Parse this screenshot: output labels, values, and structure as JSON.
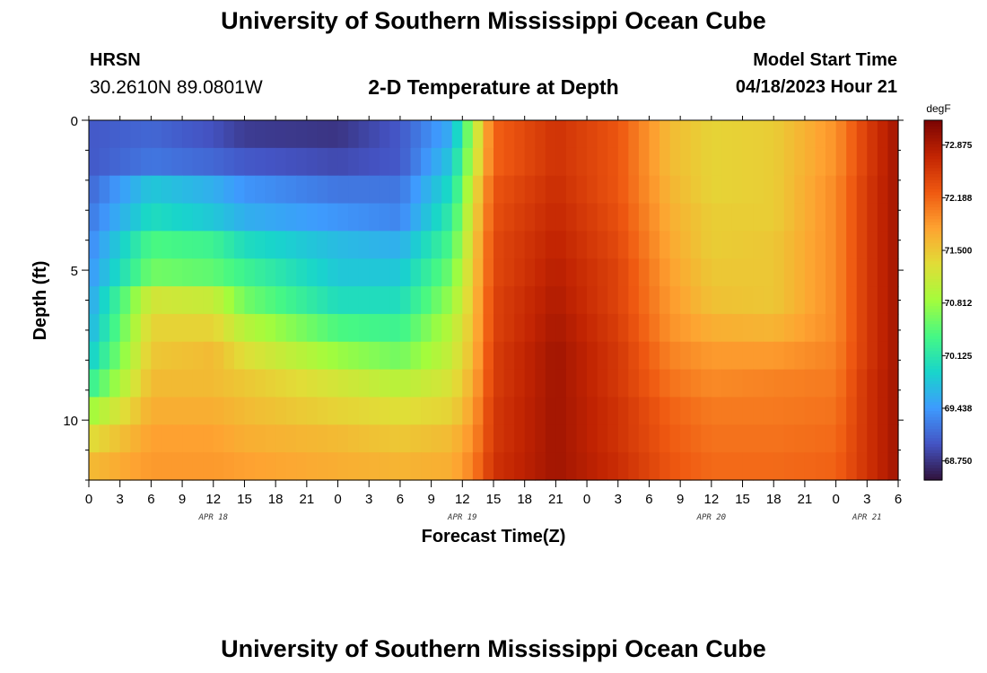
{
  "header": {
    "title": "University of Southern Mississippi Ocean Cube",
    "station_code": "HRSN",
    "station_coords": "30.2610N  89.0801W",
    "subtitle": "2-D Temperature at Depth",
    "model_start_label": "Model Start Time",
    "model_start_value": "04/18/2023 Hour 21"
  },
  "footer": {
    "title": "University of Southern Mississippi Ocean Cube"
  },
  "chart_data": {
    "type": "heatmap",
    "title": "2-D Temperature at Depth",
    "xlabel": "Forecast Time(Z)",
    "ylabel": "Depth (ft)",
    "x_tick_labels": [
      "0",
      "3",
      "6",
      "9",
      "12",
      "15",
      "18",
      "21",
      "0",
      "3",
      "6",
      "9",
      "12",
      "15",
      "18",
      "21",
      "0",
      "3",
      "6",
      "9",
      "12",
      "15",
      "18",
      "21",
      "0",
      "3",
      "6"
    ],
    "x_range_hours": [
      0,
      78
    ],
    "x_tick_step_hours": 3,
    "date_labels": [
      {
        "label": "APR 18",
        "hour": 12
      },
      {
        "label": "APR 19",
        "hour": 36
      },
      {
        "label": "APR 20",
        "hour": 60
      },
      {
        "label": "APR 21",
        "hour": 75
      }
    ],
    "y_range": [
      0,
      12
    ],
    "y_ticks": [
      0,
      5,
      10
    ],
    "y_tick_labels": [
      "0",
      "5",
      "10"
    ],
    "colorbar": {
      "unit": "degF",
      "range": [
        68.5,
        73.2
      ],
      "tick_labels": [
        "72.875",
        "72.188",
        "71.500",
        "70.812",
        "70.125",
        "69.438",
        "68.750"
      ],
      "tick_values": [
        72.875,
        72.188,
        71.5,
        70.812,
        70.125,
        69.438,
        68.75
      ],
      "colormap": [
        "#30123b",
        "#4454c4",
        "#3e9bfe",
        "#18d5cb",
        "#46f884",
        "#a4fc3c",
        "#e1dd37",
        "#fea331",
        "#ef5911",
        "#c22402",
        "#7a0403"
      ]
    },
    "time_hours": [
      0,
      6,
      12,
      15,
      24,
      30,
      35,
      37,
      39,
      45,
      51,
      56,
      60,
      66,
      72,
      75,
      78
    ],
    "depth_rows_ft": [
      0,
      1,
      2,
      3,
      4,
      5,
      6,
      7,
      8,
      9,
      10,
      11,
      12
    ],
    "temperature_degF": [
      [
        69.0,
        69.1,
        68.95,
        68.8,
        68.75,
        69.0,
        69.6,
        70.9,
        72.2,
        72.6,
        72.3,
        71.6,
        71.4,
        71.45,
        71.9,
        72.5,
        72.95
      ],
      [
        69.0,
        69.2,
        69.1,
        69.0,
        68.9,
        69.0,
        69.8,
        71.0,
        72.2,
        72.6,
        72.3,
        71.6,
        71.4,
        71.45,
        71.9,
        72.5,
        72.95
      ],
      [
        69.1,
        69.8,
        69.6,
        69.4,
        69.2,
        69.2,
        70.0,
        71.2,
        72.3,
        72.65,
        72.3,
        71.65,
        71.4,
        71.45,
        71.95,
        72.55,
        72.95
      ],
      [
        69.2,
        70.0,
        69.8,
        69.6,
        69.4,
        69.3,
        70.2,
        71.3,
        72.35,
        72.7,
        72.35,
        71.7,
        71.45,
        71.45,
        71.95,
        72.55,
        72.95
      ],
      [
        69.3,
        70.4,
        70.3,
        70.0,
        69.7,
        69.6,
        70.4,
        71.4,
        72.4,
        72.75,
        72.4,
        71.75,
        71.45,
        71.5,
        71.95,
        72.55,
        72.95
      ],
      [
        69.4,
        70.6,
        70.5,
        70.3,
        69.8,
        69.8,
        70.6,
        71.45,
        72.4,
        72.8,
        72.45,
        71.8,
        71.5,
        71.5,
        71.95,
        72.55,
        72.95
      ],
      [
        69.5,
        71.2,
        71.1,
        70.6,
        70.0,
        70.0,
        70.8,
        71.5,
        72.45,
        72.85,
        72.45,
        71.85,
        71.55,
        71.5,
        71.95,
        72.55,
        72.95
      ],
      [
        69.6,
        71.4,
        71.4,
        71.0,
        70.4,
        70.3,
        71.0,
        71.55,
        72.45,
        72.9,
        72.5,
        71.9,
        71.7,
        71.65,
        71.95,
        72.55,
        72.95
      ],
      [
        69.8,
        71.5,
        71.6,
        71.3,
        70.8,
        70.6,
        71.1,
        71.6,
        72.5,
        72.95,
        72.55,
        72.0,
        71.85,
        71.85,
        72.0,
        72.55,
        72.95
      ],
      [
        70.2,
        71.6,
        71.6,
        71.5,
        71.2,
        71.0,
        71.25,
        71.7,
        72.5,
        72.95,
        72.55,
        72.1,
        71.95,
        72.0,
        72.05,
        72.6,
        72.95
      ],
      [
        70.8,
        71.7,
        71.7,
        71.6,
        71.4,
        71.3,
        71.4,
        71.8,
        72.55,
        72.95,
        72.6,
        72.2,
        72.05,
        72.05,
        72.1,
        72.6,
        72.95
      ],
      [
        71.3,
        71.8,
        71.8,
        71.7,
        71.6,
        71.5,
        71.6,
        71.9,
        72.55,
        72.95,
        72.6,
        72.25,
        72.1,
        72.1,
        72.15,
        72.6,
        72.95
      ],
      [
        71.6,
        71.85,
        71.85,
        71.8,
        71.7,
        71.65,
        71.7,
        72.0,
        72.6,
        72.95,
        72.65,
        72.3,
        72.15,
        72.15,
        72.2,
        72.6,
        72.95
      ]
    ]
  }
}
